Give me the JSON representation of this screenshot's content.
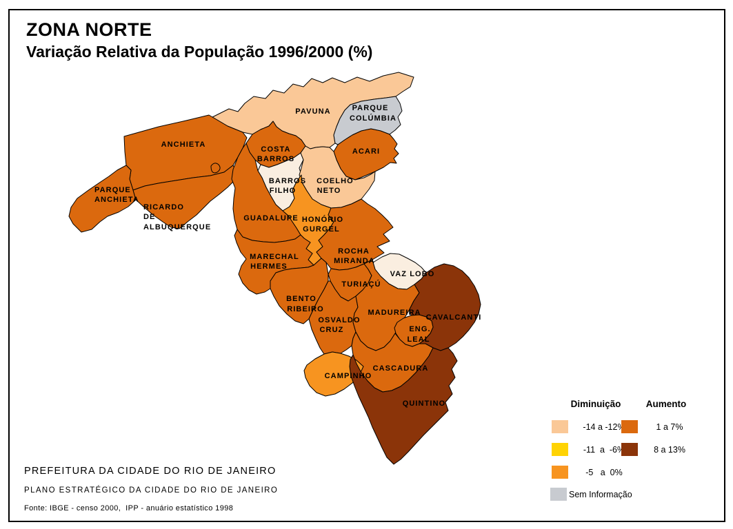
{
  "header": {
    "title": "ZONA NORTE",
    "subtitle": "Variação Relativa da População 1996/2000 (%)"
  },
  "legend": {
    "decrease_title": "Diminuição",
    "increase_title": "Aumento",
    "classes": [
      {
        "id": "m14_m12",
        "label": "-14 a -12%",
        "color": "#FAC897"
      },
      {
        "id": "m11_m6",
        "label": "-11  a  -6%",
        "color": "#FFD303"
      },
      {
        "id": "m5_0",
        "label": "-5   a  0%",
        "color": "#F79420"
      },
      {
        "id": "p1_7",
        "label": "1 a 7%",
        "color": "#DB690E"
      },
      {
        "id": "p8_13",
        "label": "8 a 13%",
        "color": "#8B3409"
      },
      {
        "id": "sem_info",
        "label": "Sem Informação",
        "color": "#C8CBD0"
      }
    ]
  },
  "map": {
    "extra_colors": {
      "pale": "#FAEEE0"
    },
    "regions": [
      {
        "id": "pavuna",
        "name": "Pavuna",
        "class_id": "m14_m12",
        "label_lines": [
          "PAVUNA"
        ]
      },
      {
        "id": "parque-columbia",
        "name": "Parque Colúmbia",
        "class_id": "sem_info",
        "label_lines": [
          "PARQUE",
          "COLÚMBIA"
        ]
      },
      {
        "id": "acari",
        "name": "Acari",
        "class_id": "p1_7",
        "label_lines": [
          "ACARI"
        ]
      },
      {
        "id": "costa-barros",
        "name": "Costa Barros",
        "class_id": "p1_7",
        "label_lines": [
          "COSTA",
          "BARROS"
        ]
      },
      {
        "id": "anchieta",
        "name": "Anchieta",
        "class_id": "p1_7",
        "label_lines": [
          "ANCHIETA"
        ]
      },
      {
        "id": "parque-anchieta",
        "name": "Parque Anchieta",
        "class_id": "p1_7",
        "label_lines": [
          "PARQUE",
          "ANCHIETA"
        ]
      },
      {
        "id": "ricardo-de-albuquerque",
        "name": "Ricardo de Albuquerque",
        "class_id": "p1_7",
        "label_lines": [
          "RICARDO",
          "DE",
          "ALBUQUERQUE"
        ]
      },
      {
        "id": "barros-filho",
        "name": "Barros Filho",
        "class_id": "pale",
        "label_lines": [
          "BARROS",
          "FILHO"
        ]
      },
      {
        "id": "coelho-neto",
        "name": "Coelho Neto",
        "class_id": "m14_m12",
        "label_lines": [
          "COELHO",
          "NETO"
        ]
      },
      {
        "id": "guadalupe",
        "name": "Guadalupe",
        "class_id": "p1_7",
        "label_lines": [
          "GUADALUPE"
        ]
      },
      {
        "id": "honorio-gurgel",
        "name": "Honório Gurgel",
        "class_id": "m5_0",
        "label_lines": [
          "HONÓRIO",
          "GURGEL"
        ]
      },
      {
        "id": "rocha-miranda",
        "name": "Rocha Miranda",
        "class_id": "p1_7",
        "label_lines": [
          "ROCHA",
          "MIRANDA"
        ]
      },
      {
        "id": "vaz-lobo",
        "name": "Vaz Lobo",
        "class_id": "pale",
        "label_lines": [
          "VAZ LOBO"
        ]
      },
      {
        "id": "marechal-hermes",
        "name": "Marechal Hermes",
        "class_id": "p1_7",
        "label_lines": [
          "MARECHAL",
          "HERMES"
        ]
      },
      {
        "id": "turiacu",
        "name": "Turiaçú",
        "class_id": "p1_7",
        "label_lines": [
          "TURIAÇÚ"
        ]
      },
      {
        "id": "bento-ribeiro",
        "name": "Bento Ribeiro",
        "class_id": "p1_7",
        "label_lines": [
          "BENTO",
          "RIBEIRO"
        ]
      },
      {
        "id": "osvaldo-cruz",
        "name": "Osvaldo Cruz",
        "class_id": "p1_7",
        "label_lines": [
          "OSVALDO",
          "CRUZ"
        ]
      },
      {
        "id": "madureira",
        "name": "Madureira",
        "class_id": "p1_7",
        "label_lines": [
          "MADUREIRA"
        ]
      },
      {
        "id": "cavalcanti",
        "name": "Cavalcanti",
        "class_id": "p8_13",
        "label_lines": [
          "CAVALCANTI"
        ]
      },
      {
        "id": "eng-leal",
        "name": "Eng. Leal",
        "class_id": "p1_7",
        "label_lines": [
          "ENG.",
          "LEAL"
        ]
      },
      {
        "id": "cascadura",
        "name": "Cascadura",
        "class_id": "p1_7",
        "label_lines": [
          "CASCADURA"
        ]
      },
      {
        "id": "campinho",
        "name": "Campinho",
        "class_id": "m5_0",
        "label_lines": [
          "CAMPINHO"
        ]
      },
      {
        "id": "quintino",
        "name": "Quintino",
        "class_id": "p8_13",
        "label_lines": [
          "QUINTINO"
        ]
      }
    ]
  },
  "footer": {
    "line1": "PREFEITURA DA CIDADE DO RIO DE JANEIRO",
    "line2": "PLANO ESTRATÉGICO DA CIDADE DO RIO DE JANEIRO",
    "line3": "Fonte: IBGE - censo 2000,  IPP - anuário estatístico 1998"
  }
}
